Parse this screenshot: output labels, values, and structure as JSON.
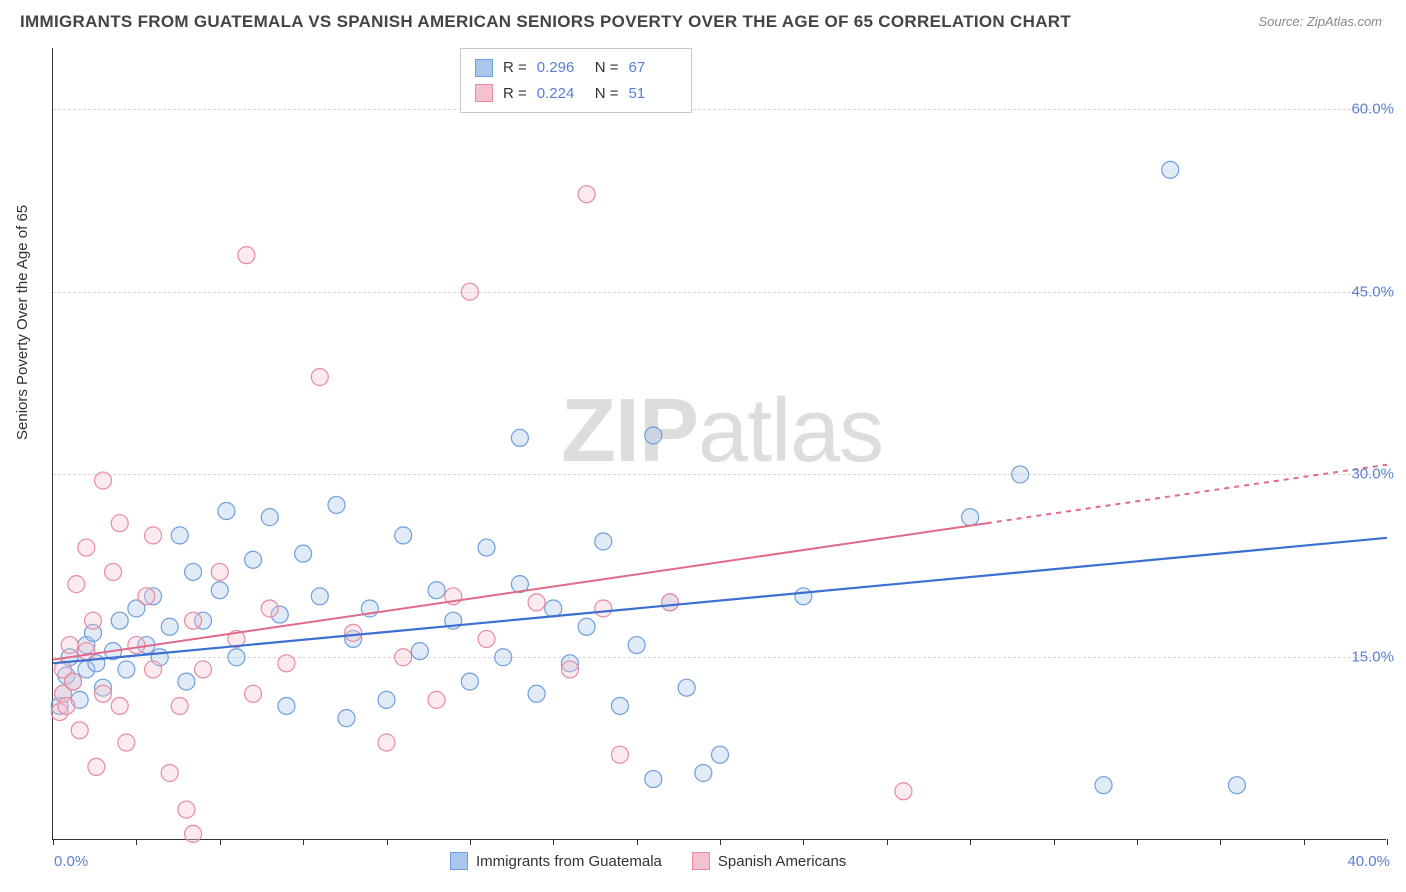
{
  "title": "IMMIGRANTS FROM GUATEMALA VS SPANISH AMERICAN SENIORS POVERTY OVER THE AGE OF 65 CORRELATION CHART",
  "source": "Source: ZipAtlas.com",
  "ylabel": "Seniors Poverty Over the Age of 65",
  "watermark_bold": "ZIP",
  "watermark_rest": "atlas",
  "chart": {
    "type": "scatter",
    "background_color": "#ffffff",
    "grid_color": "#d8d8d8",
    "axis_color": "#333333",
    "tick_label_color": "#5b7fd1",
    "xlim": [
      0,
      40
    ],
    "ylim": [
      0,
      65
    ],
    "x_ticks": [
      0,
      2.5,
      5,
      7.5,
      10,
      12.5,
      15,
      17.5,
      20,
      22.5,
      25,
      27.5,
      30,
      32.5,
      35,
      37.5,
      40
    ],
    "x_tick_labels": {
      "0": "0.0%",
      "40": "40.0%"
    },
    "y_gridlines": [
      15,
      30,
      45,
      60
    ],
    "y_tick_labels": {
      "15": "15.0%",
      "30": "30.0%",
      "45": "45.0%",
      "60": "60.0%"
    },
    "marker_radius": 8.5,
    "marker_stroke_width": 1.2,
    "marker_fill_opacity": 0.35,
    "series": [
      {
        "name": "Immigrants from Guatemala",
        "color_fill": "#a9c6ec",
        "color_stroke": "#6f9fdc",
        "R": "0.296",
        "N": "67",
        "trend": {
          "x1": 0,
          "y1": 14.5,
          "x2": 40,
          "y2": 24.8,
          "color": "#3b6fd1",
          "width": 2.2,
          "dash_from_x": 40
        },
        "points": [
          [
            0.2,
            11.0
          ],
          [
            0.3,
            12.0
          ],
          [
            0.4,
            13.5
          ],
          [
            0.5,
            15.0
          ],
          [
            0.6,
            13.0
          ],
          [
            0.8,
            11.5
          ],
          [
            1.0,
            14.0
          ],
          [
            1.0,
            16.0
          ],
          [
            1.2,
            17.0
          ],
          [
            1.3,
            14.5
          ],
          [
            1.5,
            12.5
          ],
          [
            1.8,
            15.5
          ],
          [
            2.0,
            18.0
          ],
          [
            2.2,
            14.0
          ],
          [
            2.5,
            19.0
          ],
          [
            2.8,
            16.0
          ],
          [
            3.0,
            20.0
          ],
          [
            3.2,
            15.0
          ],
          [
            3.5,
            17.5
          ],
          [
            3.8,
            25.0
          ],
          [
            4.0,
            13.0
          ],
          [
            4.2,
            22.0
          ],
          [
            4.5,
            18.0
          ],
          [
            5.0,
            20.5
          ],
          [
            5.2,
            27.0
          ],
          [
            5.5,
            15.0
          ],
          [
            6.0,
            23.0
          ],
          [
            6.5,
            26.5
          ],
          [
            6.8,
            18.5
          ],
          [
            7.0,
            11.0
          ],
          [
            7.5,
            23.5
          ],
          [
            8.0,
            20.0
          ],
          [
            8.5,
            27.5
          ],
          [
            8.8,
            10.0
          ],
          [
            9.0,
            16.5
          ],
          [
            9.5,
            19.0
          ],
          [
            10.0,
            11.5
          ],
          [
            10.5,
            25.0
          ],
          [
            11.0,
            15.5
          ],
          [
            11.5,
            20.5
          ],
          [
            12.0,
            18.0
          ],
          [
            12.5,
            13.0
          ],
          [
            13.0,
            24.0
          ],
          [
            13.5,
            15.0
          ],
          [
            14.0,
            21.0
          ],
          [
            14.0,
            33.0
          ],
          [
            14.5,
            12.0
          ],
          [
            15.0,
            19.0
          ],
          [
            15.5,
            14.5
          ],
          [
            16.0,
            17.5
          ],
          [
            16.5,
            24.5
          ],
          [
            17.0,
            11.0
          ],
          [
            17.5,
            16.0
          ],
          [
            18.0,
            33.2
          ],
          [
            18.0,
            5.0
          ],
          [
            18.5,
            19.5
          ],
          [
            19.0,
            12.5
          ],
          [
            19.5,
            5.5
          ],
          [
            20.0,
            7.0
          ],
          [
            22.5,
            20.0
          ],
          [
            27.5,
            26.5
          ],
          [
            29.0,
            30.0
          ],
          [
            31.5,
            4.5
          ],
          [
            33.5,
            55.0
          ],
          [
            35.5,
            4.5
          ]
        ]
      },
      {
        "name": "Spanish Americans",
        "color_fill": "#f4c2ce",
        "color_stroke": "#e88ba2",
        "R": "0.224",
        "N": "51",
        "trend": {
          "x1": 0,
          "y1": 14.8,
          "x2": 40,
          "y2": 30.8,
          "color": "#e06a8a",
          "width": 2.0,
          "dash_from_x": 28
        },
        "points": [
          [
            0.2,
            10.5
          ],
          [
            0.3,
            12.0
          ],
          [
            0.3,
            14.0
          ],
          [
            0.4,
            11.0
          ],
          [
            0.5,
            16.0
          ],
          [
            0.6,
            13.0
          ],
          [
            0.7,
            21.0
          ],
          [
            0.8,
            9.0
          ],
          [
            1.0,
            15.5
          ],
          [
            1.0,
            24.0
          ],
          [
            1.2,
            18.0
          ],
          [
            1.3,
            6.0
          ],
          [
            1.5,
            29.5
          ],
          [
            1.5,
            12.0
          ],
          [
            1.8,
            22.0
          ],
          [
            2.0,
            26.0
          ],
          [
            2.0,
            11.0
          ],
          [
            2.2,
            8.0
          ],
          [
            2.5,
            16.0
          ],
          [
            2.8,
            20.0
          ],
          [
            3.0,
            25.0
          ],
          [
            3.0,
            14.0
          ],
          [
            3.5,
            5.5
          ],
          [
            3.8,
            11.0
          ],
          [
            4.0,
            2.5
          ],
          [
            4.2,
            18.0
          ],
          [
            4.2,
            0.5
          ],
          [
            4.5,
            14.0
          ],
          [
            5.0,
            22.0
          ],
          [
            5.5,
            16.5
          ],
          [
            5.8,
            48.0
          ],
          [
            6.0,
            12.0
          ],
          [
            6.5,
            19.0
          ],
          [
            7.0,
            14.5
          ],
          [
            8.0,
            38.0
          ],
          [
            9.0,
            17.0
          ],
          [
            10.0,
            8.0
          ],
          [
            10.5,
            15.0
          ],
          [
            11.5,
            11.5
          ],
          [
            12.0,
            20.0
          ],
          [
            12.5,
            45.0
          ],
          [
            13.0,
            16.5
          ],
          [
            14.5,
            19.5
          ],
          [
            15.5,
            14.0
          ],
          [
            16.0,
            53.0
          ],
          [
            16.5,
            19.0
          ],
          [
            17.0,
            7.0
          ],
          [
            18.5,
            19.5
          ],
          [
            25.5,
            4.0
          ]
        ]
      }
    ]
  },
  "legend_top": {
    "r_label": "R =",
    "n_label": "N ="
  },
  "legend_bottom": [
    {
      "label": "Immigrants from Guatemala",
      "fill": "#a9c6ec",
      "stroke": "#6f9fdc"
    },
    {
      "label": "Spanish Americans",
      "fill": "#f4c2ce",
      "stroke": "#e88ba2"
    }
  ]
}
